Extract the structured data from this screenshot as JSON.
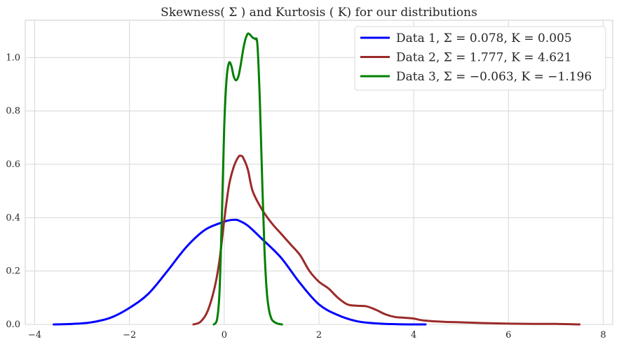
{
  "chart_data": {
    "type": "line",
    "title": "Skewness( Σ ) and Kurtosis ( K) for our distributions",
    "xlabel": "",
    "ylabel": "",
    "xlim": [
      -4.2,
      8.2
    ],
    "ylim": [
      0,
      1.14
    ],
    "x_ticks": [
      -4,
      -2,
      0,
      2,
      4,
      6,
      8
    ],
    "x_tick_labels": [
      "−4",
      "−2",
      "0",
      "2",
      "4",
      "6",
      "8"
    ],
    "y_ticks": [
      0.0,
      0.2,
      0.4,
      0.6,
      0.8,
      1.0
    ],
    "y_tick_labels": [
      "0.0",
      "0.2",
      "0.4",
      "0.6",
      "0.8",
      "1.0"
    ],
    "grid": true,
    "legend_position": "top-right",
    "series": [
      {
        "name": "Data 1, Σ = 0.078,  K = 0.005",
        "color": "#0000ff",
        "x": [
          -3.6,
          -3.2,
          -2.8,
          -2.4,
          -2.0,
          -1.6,
          -1.2,
          -0.8,
          -0.4,
          0.0,
          0.1,
          0.2,
          0.3,
          0.5,
          0.8,
          1.2,
          1.6,
          2.0,
          2.4,
          2.8,
          3.2,
          3.6,
          4.0,
          4.25
        ],
        "y": [
          0.0,
          0.002,
          0.008,
          0.025,
          0.062,
          0.115,
          0.2,
          0.29,
          0.355,
          0.385,
          0.39,
          0.392,
          0.39,
          0.37,
          0.32,
          0.25,
          0.155,
          0.075,
          0.035,
          0.012,
          0.004,
          0.001,
          0.0,
          0.0
        ]
      },
      {
        "name": "Data 2, Σ = 1.777,  K = 4.621",
        "color": "#9b2a2a",
        "x": [
          -0.65,
          -0.5,
          -0.35,
          -0.2,
          -0.1,
          0.0,
          0.1,
          0.2,
          0.3,
          0.35,
          0.4,
          0.5,
          0.6,
          0.8,
          1.0,
          1.2,
          1.4,
          1.6,
          1.8,
          2.0,
          2.2,
          2.4,
          2.6,
          2.8,
          3.0,
          3.2,
          3.4,
          3.6,
          3.8,
          4.0,
          4.2,
          4.6,
          5.0,
          5.5,
          6.0,
          6.5,
          7.0,
          7.5
        ],
        "y": [
          0.0,
          0.01,
          0.05,
          0.14,
          0.24,
          0.39,
          0.52,
          0.59,
          0.628,
          0.632,
          0.625,
          0.58,
          0.5,
          0.43,
          0.38,
          0.34,
          0.3,
          0.26,
          0.2,
          0.16,
          0.135,
          0.1,
          0.075,
          0.07,
          0.068,
          0.055,
          0.038,
          0.028,
          0.025,
          0.022,
          0.015,
          0.01,
          0.008,
          0.005,
          0.003,
          0.002,
          0.002,
          0.0
        ]
      },
      {
        "name": "Data 3, Σ = −0.063,  K = −1.196",
        "color": "#008000",
        "x": [
          -0.22,
          -0.15,
          -0.1,
          -0.05,
          0.0,
          0.05,
          0.1,
          0.15,
          0.2,
          0.25,
          0.3,
          0.35,
          0.4,
          0.45,
          0.5,
          0.55,
          0.6,
          0.65,
          0.7,
          0.75,
          0.8,
          0.85,
          0.9,
          0.95,
          1.0,
          1.05,
          1.1,
          1.15,
          1.22
        ],
        "y": [
          0.0,
          0.02,
          0.12,
          0.4,
          0.74,
          0.92,
          0.98,
          0.97,
          0.93,
          0.915,
          0.93,
          0.975,
          1.03,
          1.07,
          1.09,
          1.085,
          1.075,
          1.07,
          1.05,
          0.85,
          0.55,
          0.28,
          0.12,
          0.05,
          0.02,
          0.01,
          0.005,
          0.002,
          0.0
        ]
      }
    ]
  }
}
